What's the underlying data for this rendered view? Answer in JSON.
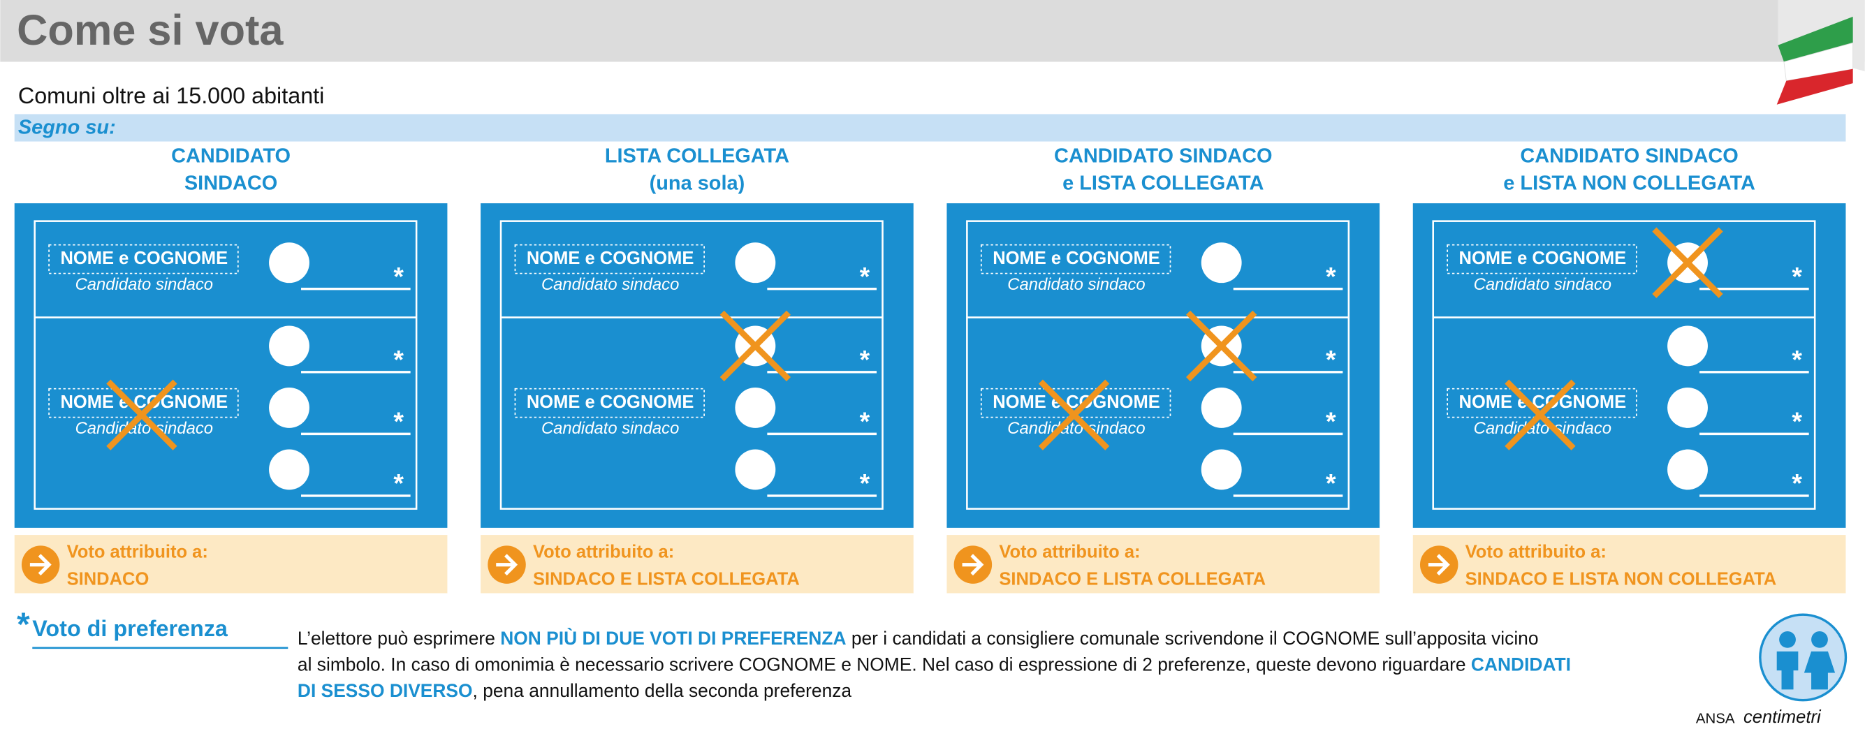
{
  "header": {
    "title": "Come si vota"
  },
  "subtitle": "Comuni oltre ai 15.000 abitanti",
  "section_label": "Segno su:",
  "ballot": {
    "name": "NOME e COGNOME",
    "role": "Candidato sindaco",
    "preference_mark": "*"
  },
  "result_label": "Voto attribuito a:",
  "panels": [
    {
      "heading": [
        "CANDIDATO",
        "SINDACO"
      ],
      "result": "SINDACO"
    },
    {
      "heading": [
        "LISTA COLLEGATA",
        "(una sola)"
      ],
      "result": "SINDACO E LISTA COLLEGATA"
    },
    {
      "heading": [
        "CANDIDATO SINDACO",
        "e LISTA COLLEGATA"
      ],
      "result": "SINDACO E LISTA COLLEGATA"
    },
    {
      "heading": [
        "CANDIDATO SINDACO",
        "e LISTA NON COLLEGATA"
      ],
      "result": "SINDACO E LISTA NON COLLEGATA"
    }
  ],
  "footnote": {
    "mark": "*",
    "title": "Voto di preferenza",
    "lines": [
      [
        {
          "text": "L’elettore può esprimere ",
          "bold": false
        },
        {
          "text": "NON PIÙ DI DUE VOTI DI PREFERENZA",
          "bold": true
        },
        {
          "text": " per i candidati a consigliere comunale scrivendone il COGNOME sull’apposita vicino",
          "bold": false
        }
      ],
      [
        {
          "text": "al simbolo. In caso di omonimia è necessario scrivere COGNOME e NOME. Nel caso di espressione di 2 preferenze, queste devono riguardare ",
          "bold": false
        },
        {
          "text": "CANDIDATI",
          "bold": true
        }
      ],
      [
        {
          "text": "DI SESSO DIVERSO",
          "bold": true
        },
        {
          "text": ", pena annullamento della seconda preferenza",
          "bold": false
        }
      ]
    ]
  },
  "credits": {
    "agency": "ANSA",
    "brand": "centimetri"
  }
}
